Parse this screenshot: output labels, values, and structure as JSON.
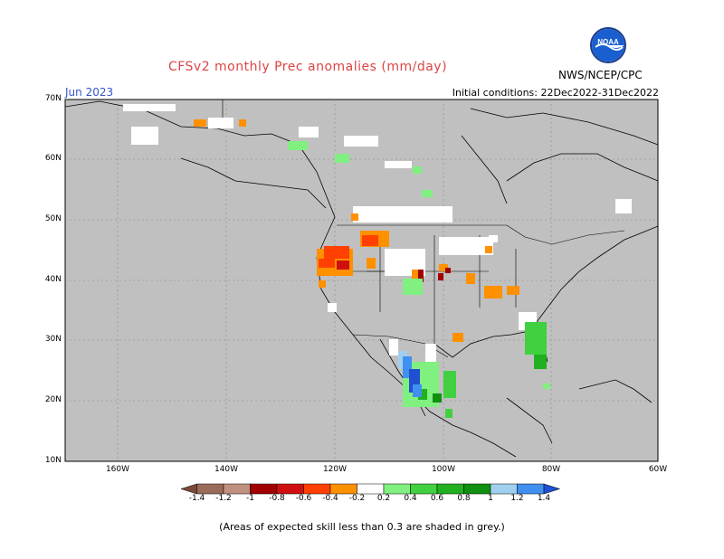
{
  "title": "CFSv2 monthly Prec anomalies (mm/day)",
  "period": "Jun 2023",
  "initial_conditions": "Initial conditions: 22Dec2022-31Dec2022",
  "agency": "NWS/NCEP/CPC",
  "logo_text": "NOAA",
  "footnote": "(Areas of expected skill less than 0.3 are shaded in grey.)",
  "lat_labels": [
    "70N",
    "60N",
    "50N",
    "40N",
    "30N",
    "20N",
    "10N"
  ],
  "lon_labels": [
    "160W",
    "140W",
    "120W",
    "100W",
    "80W",
    "60W"
  ],
  "colorbar": {
    "labels": [
      "-1.4",
      "-1.2",
      "-1",
      "-0.8",
      "-0.6",
      "-0.4",
      "-0.2",
      "0.2",
      "0.4",
      "0.6",
      "0.8",
      "1",
      "1.2",
      "1.4"
    ],
    "colors": [
      "#7a4a3a",
      "#9b6b5a",
      "#c09080",
      "#a00000",
      "#d01010",
      "#ff4000",
      "#ff9000",
      "#ffffff",
      "#80f080",
      "#40d040",
      "#20b020",
      "#109010",
      "#a0d0f0",
      "#4090f0",
      "#2050d0"
    ]
  },
  "legend_colors": {
    "grey_low_skill": "#c0c0c0",
    "land_outline": "#000000",
    "grid": "#888888"
  }
}
